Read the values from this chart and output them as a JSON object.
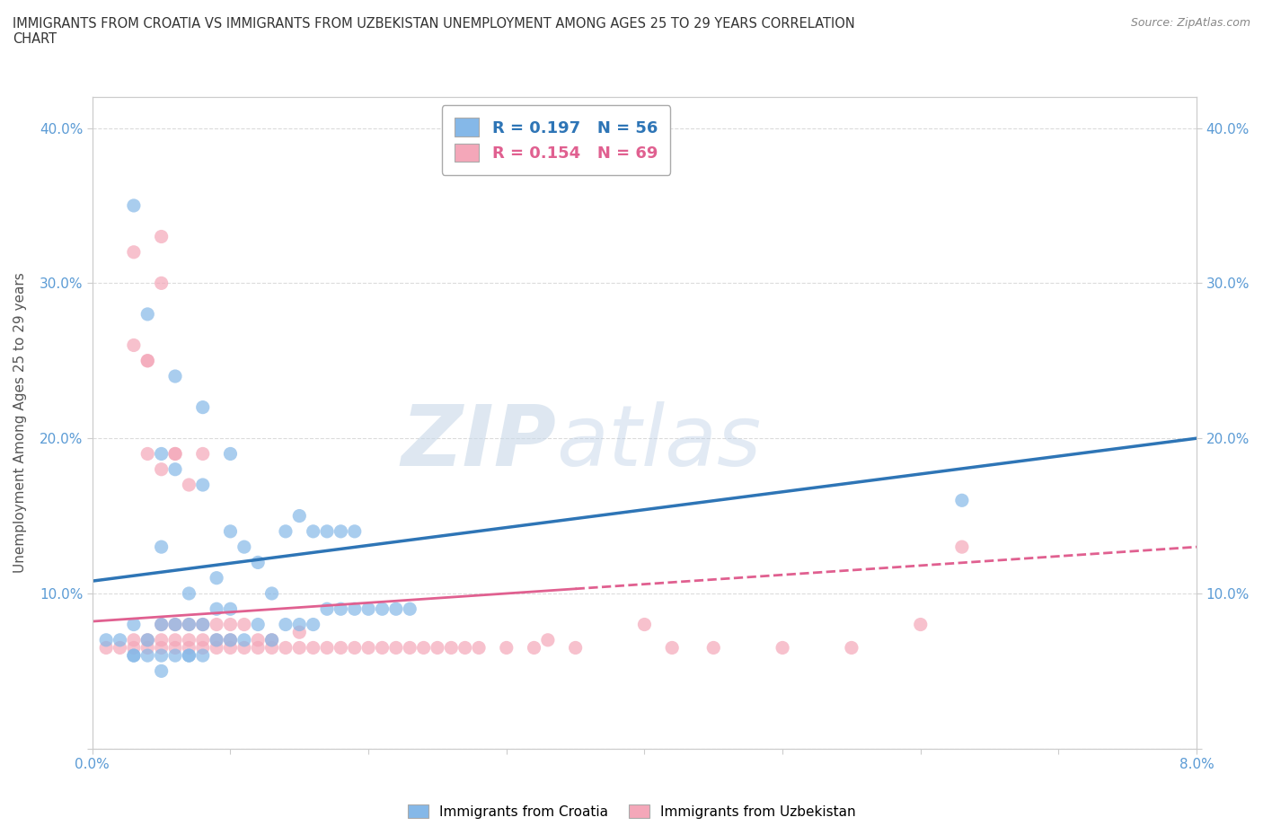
{
  "title": "IMMIGRANTS FROM CROATIA VS IMMIGRANTS FROM UZBEKISTAN UNEMPLOYMENT AMONG AGES 25 TO 29 YEARS CORRELATION\nCHART",
  "source_text": "Source: ZipAtlas.com",
  "ylabel": "Unemployment Among Ages 25 to 29 years",
  "xlim": [
    0.0,
    0.08
  ],
  "ylim": [
    0.0,
    0.42
  ],
  "croatia_color": "#85b8e8",
  "uzbekistan_color": "#f4a7b9",
  "croatia_line_color": "#2e75b6",
  "uzbekistan_line_color": "#e06090",
  "croatia_R": 0.197,
  "croatia_N": 56,
  "uzbekistan_R": 0.154,
  "uzbekistan_N": 69,
  "background_color": "#ffffff",
  "grid_color": "#cccccc",
  "croatia_scatter_x": [
    0.001,
    0.002,
    0.003,
    0.003,
    0.004,
    0.004,
    0.005,
    0.005,
    0.005,
    0.006,
    0.006,
    0.006,
    0.007,
    0.007,
    0.007,
    0.008,
    0.008,
    0.008,
    0.009,
    0.009,
    0.009,
    0.01,
    0.01,
    0.01,
    0.011,
    0.011,
    0.012,
    0.012,
    0.013,
    0.013,
    0.014,
    0.014,
    0.015,
    0.015,
    0.016,
    0.016,
    0.017,
    0.017,
    0.018,
    0.018,
    0.019,
    0.019,
    0.02,
    0.021,
    0.022,
    0.023,
    0.003,
    0.004,
    0.005,
    0.006,
    0.008,
    0.01,
    0.063,
    0.003,
    0.005,
    0.007
  ],
  "croatia_scatter_y": [
    0.07,
    0.07,
    0.06,
    0.08,
    0.06,
    0.07,
    0.06,
    0.08,
    0.13,
    0.06,
    0.08,
    0.24,
    0.06,
    0.08,
    0.1,
    0.06,
    0.08,
    0.17,
    0.07,
    0.09,
    0.11,
    0.07,
    0.09,
    0.14,
    0.07,
    0.13,
    0.08,
    0.12,
    0.07,
    0.1,
    0.08,
    0.14,
    0.08,
    0.15,
    0.08,
    0.14,
    0.09,
    0.14,
    0.09,
    0.14,
    0.09,
    0.14,
    0.09,
    0.09,
    0.09,
    0.09,
    0.35,
    0.28,
    0.19,
    0.18,
    0.22,
    0.19,
    0.16,
    0.06,
    0.05,
    0.06
  ],
  "uzbekistan_scatter_x": [
    0.001,
    0.002,
    0.003,
    0.003,
    0.004,
    0.004,
    0.005,
    0.005,
    0.005,
    0.006,
    0.006,
    0.006,
    0.007,
    0.007,
    0.007,
    0.008,
    0.008,
    0.008,
    0.009,
    0.009,
    0.009,
    0.01,
    0.01,
    0.01,
    0.011,
    0.011,
    0.012,
    0.012,
    0.013,
    0.013,
    0.014,
    0.015,
    0.015,
    0.016,
    0.017,
    0.018,
    0.019,
    0.02,
    0.021,
    0.022,
    0.023,
    0.024,
    0.025,
    0.026,
    0.027,
    0.028,
    0.03,
    0.032,
    0.033,
    0.035,
    0.04,
    0.042,
    0.045,
    0.05,
    0.055,
    0.06,
    0.063,
    0.003,
    0.004,
    0.005,
    0.006,
    0.007,
    0.008,
    0.004,
    0.005,
    0.006,
    0.003,
    0.004,
    0.005
  ],
  "uzbekistan_scatter_y": [
    0.065,
    0.065,
    0.065,
    0.07,
    0.065,
    0.07,
    0.065,
    0.07,
    0.08,
    0.065,
    0.07,
    0.08,
    0.065,
    0.07,
    0.08,
    0.065,
    0.07,
    0.08,
    0.065,
    0.07,
    0.08,
    0.065,
    0.07,
    0.08,
    0.065,
    0.08,
    0.065,
    0.07,
    0.065,
    0.07,
    0.065,
    0.065,
    0.075,
    0.065,
    0.065,
    0.065,
    0.065,
    0.065,
    0.065,
    0.065,
    0.065,
    0.065,
    0.065,
    0.065,
    0.065,
    0.065,
    0.065,
    0.065,
    0.07,
    0.065,
    0.08,
    0.065,
    0.065,
    0.065,
    0.065,
    0.08,
    0.13,
    0.32,
    0.25,
    0.3,
    0.19,
    0.17,
    0.19,
    0.19,
    0.18,
    0.19,
    0.26,
    0.25,
    0.33
  ]
}
